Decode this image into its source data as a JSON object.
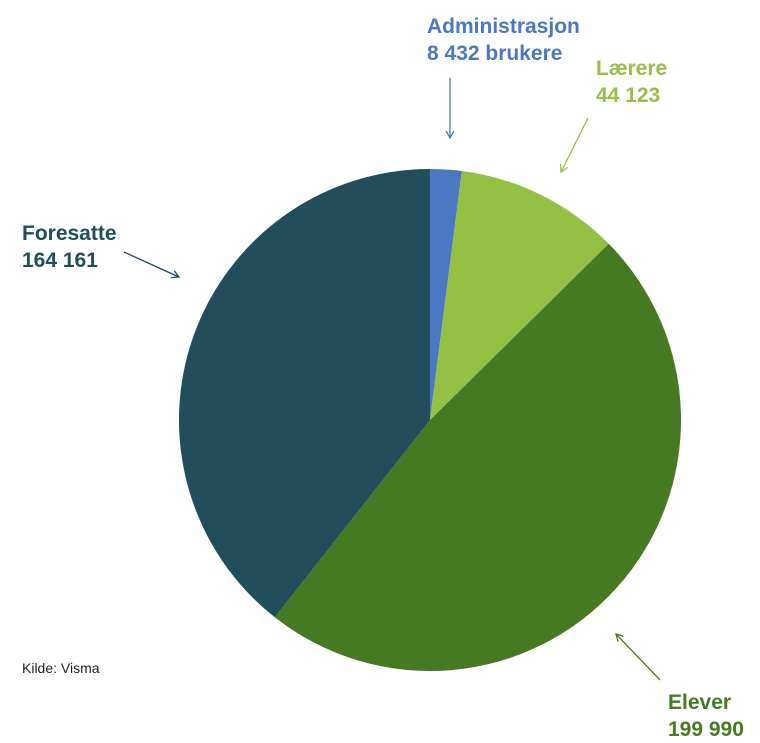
{
  "chart_data": {
    "type": "pie",
    "title": "",
    "slices": [
      {
        "name": "Administrasjon",
        "value_label": "8 432 brukere",
        "value": 8432,
        "color": "#4a78c2"
      },
      {
        "name": "Lærere",
        "value_label": "44 123",
        "value": 44123,
        "color": "#94c044"
      },
      {
        "name": "Elever",
        "value_label": "199 990",
        "value": 199990,
        "color": "#457a22"
      },
      {
        "name": "Foresatte",
        "value_label": "164 161",
        "value": 164161,
        "color": "#214e5a"
      }
    ],
    "start_angle": "12 o'clock",
    "direction": "clockwise",
    "legend": "none"
  },
  "source": "Kilde: Visma"
}
